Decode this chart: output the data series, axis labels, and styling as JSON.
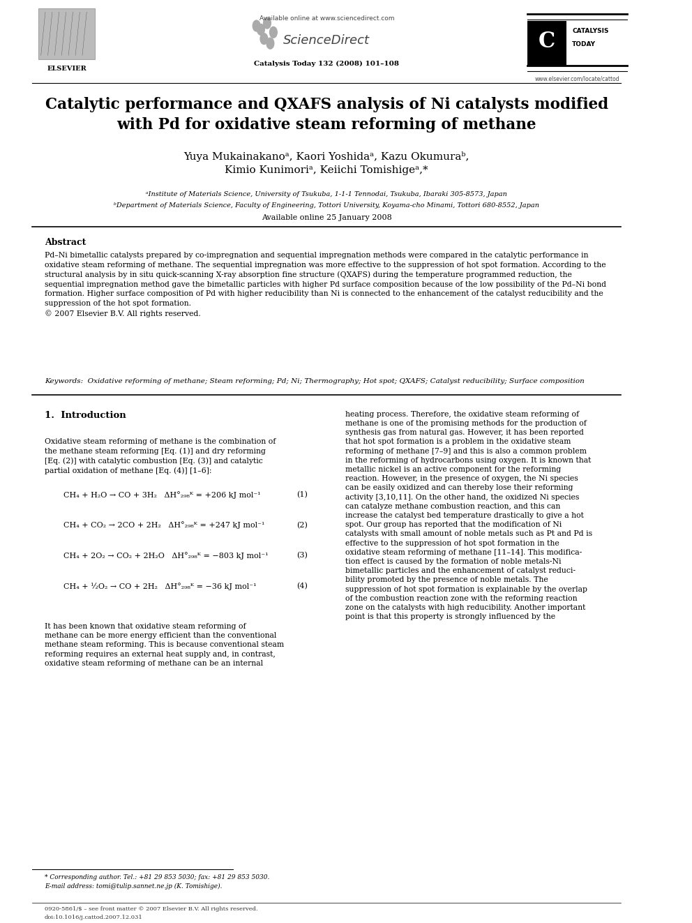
{
  "page_width": 9.92,
  "page_height": 13.23,
  "bg_color": "#ffffff",
  "header_available_online": "Available online at www.sciencedirect.com",
  "header_journal_info": "Catalysis Today 132 (2008) 101–108",
  "header_elsevier_text": "ELSEVIER",
  "header_website": "www.elsevier.com/locate/cattod",
  "title": "Catalytic performance and QXAFS analysis of Ni catalysts modified\nwith Pd for oxidative steam reforming of methane",
  "authors": "Yuya Mukainakanoᵃ, Kaori Yoshidaᵃ, Kazu Okumuraᵇ,\nKimio Kunimoriᵃ, Keiichi Tomishigeᵃ,*",
  "affil_a": "ᵃInstitute of Materials Science, University of Tsukuba, 1-1-1 Tennodai, Tsukuba, Ibaraki 305-8573, Japan",
  "affil_b": "ᵇDepartment of Materials Science, Faculty of Engineering, Tottori University, Koyama-cho Minami, Tottori 680-8552, Japan",
  "available_online_date": "Available online 25 January 2008",
  "abstract_title": "Abstract",
  "abstract_text": "Pd–Ni bimetallic catalysts prepared by co-impregnation and sequential impregnation methods were compared in the catalytic performance in\noxidative steam reforming of methane. The sequential impregnation was more effective to the suppression of hot spot formation. According to the\nstructural analysis by in situ quick-scanning X-ray absorption fine structure (QXAFS) during the temperature programmed reduction, the\nsequential impregnation method gave the bimetallic particles with higher Pd surface composition because of the low possibility of the Pd–Ni bond\nformation. Higher surface composition of Pd with higher reducibility than Ni is connected to the enhancement of the catalyst reducibility and the\nsuppression of the hot spot formation.\n© 2007 Elsevier B.V. All rights reserved.",
  "keywords_label": "Keywords:",
  "keywords_text": "Oxidative reforming of methane; Steam reforming; Pd; Ni; Thermography; Hot spot; QXAFS; Catalyst reducibility; Surface composition",
  "section1_title": "1.  Introduction",
  "intro_col1_p1": "Oxidative steam reforming of methane is the combination of\nthe methane steam reforming [Eq. (1)] and dry reforming\n[Eq. (2)] with catalytic combustion [Eq. (3)] and catalytic\npartial oxidation of methane [Eq. (4)] [1–6]:",
  "eq1": "CH₄ + H₂O → CO + 3H₂   ΔH°₂₉₈ᴷ = +206 kJ mol⁻¹",
  "eq1_num": "(1)",
  "eq2": "CH₄ + CO₂ → 2CO + 2H₂   ΔH°₂₉₈ᴷ = +247 kJ mol⁻¹",
  "eq2_num": "(2)",
  "eq3": "CH₄ + 2O₂ → CO₂ + 2H₂O   ΔH°₂₉₈ᴷ = −803 kJ mol⁻¹",
  "eq3_num": "(3)",
  "eq4": "CH₄ + ½O₂ → CO + 2H₂   ΔH°₂₉₈ᴷ = −36 kJ mol⁻¹",
  "eq4_num": "(4)",
  "intro_col1_p2": "It has been known that oxidative steam reforming of\nmethane can be more energy efficient than the conventional\nmethane steam reforming. This is because conventional steam\nreforming requires an external heat supply and, in contrast,\noxidative steam reforming of methane can be an internal",
  "intro_col2_p1": "heating process. Therefore, the oxidative steam reforming of\nmethane is one of the promising methods for the production of\nsynthesis gas from natural gas. However, it has been reported\nthat hot spot formation is a problem in the oxidative steam\nreforming of methane [7–9] and this is also a common problem\nin the reforming of hydrocarbons using oxygen. It is known that\nmetallic nickel is an active component for the reforming\nreaction. However, in the presence of oxygen, the Ni species\ncan be easily oxidized and can thereby lose their reforming\nactivity [3,10,11]. On the other hand, the oxidized Ni species\ncan catalyze methane combustion reaction, and this can\nincrease the catalyst bed temperature drastically to give a hot\nspot. Our group has reported that the modification of Ni\ncatalysts with small amount of noble metals such as Pt and Pd is\neffective to the suppression of hot spot formation in the\noxidative steam reforming of methane [11–14]. This modifica-\ntion effect is caused by the formation of noble metals-Ni\nbimetallic particles and the enhancement of catalyst reduci-\nbility promoted by the presence of noble metals. The\nsuppression of hot spot formation is explainable by the overlap\nof the combustion reaction zone with the reforming reaction\nzone on the catalysts with high reducibility. Another important\npoint is that this property is strongly influenced by the",
  "footnote_star": "* Corresponding author. Tel.: +81 29 853 5030; fax: +81 29 853 5030.",
  "footnote_email": "E-mail address: tomi@tulip.sannet.ne.jp (K. Tomishige).",
  "footer_left": "0920-5861/$ – see front matter © 2007 Elsevier B.V. All rights reserved.",
  "footer_doi": "doi:10.1016/j.cattod.2007.12.031"
}
